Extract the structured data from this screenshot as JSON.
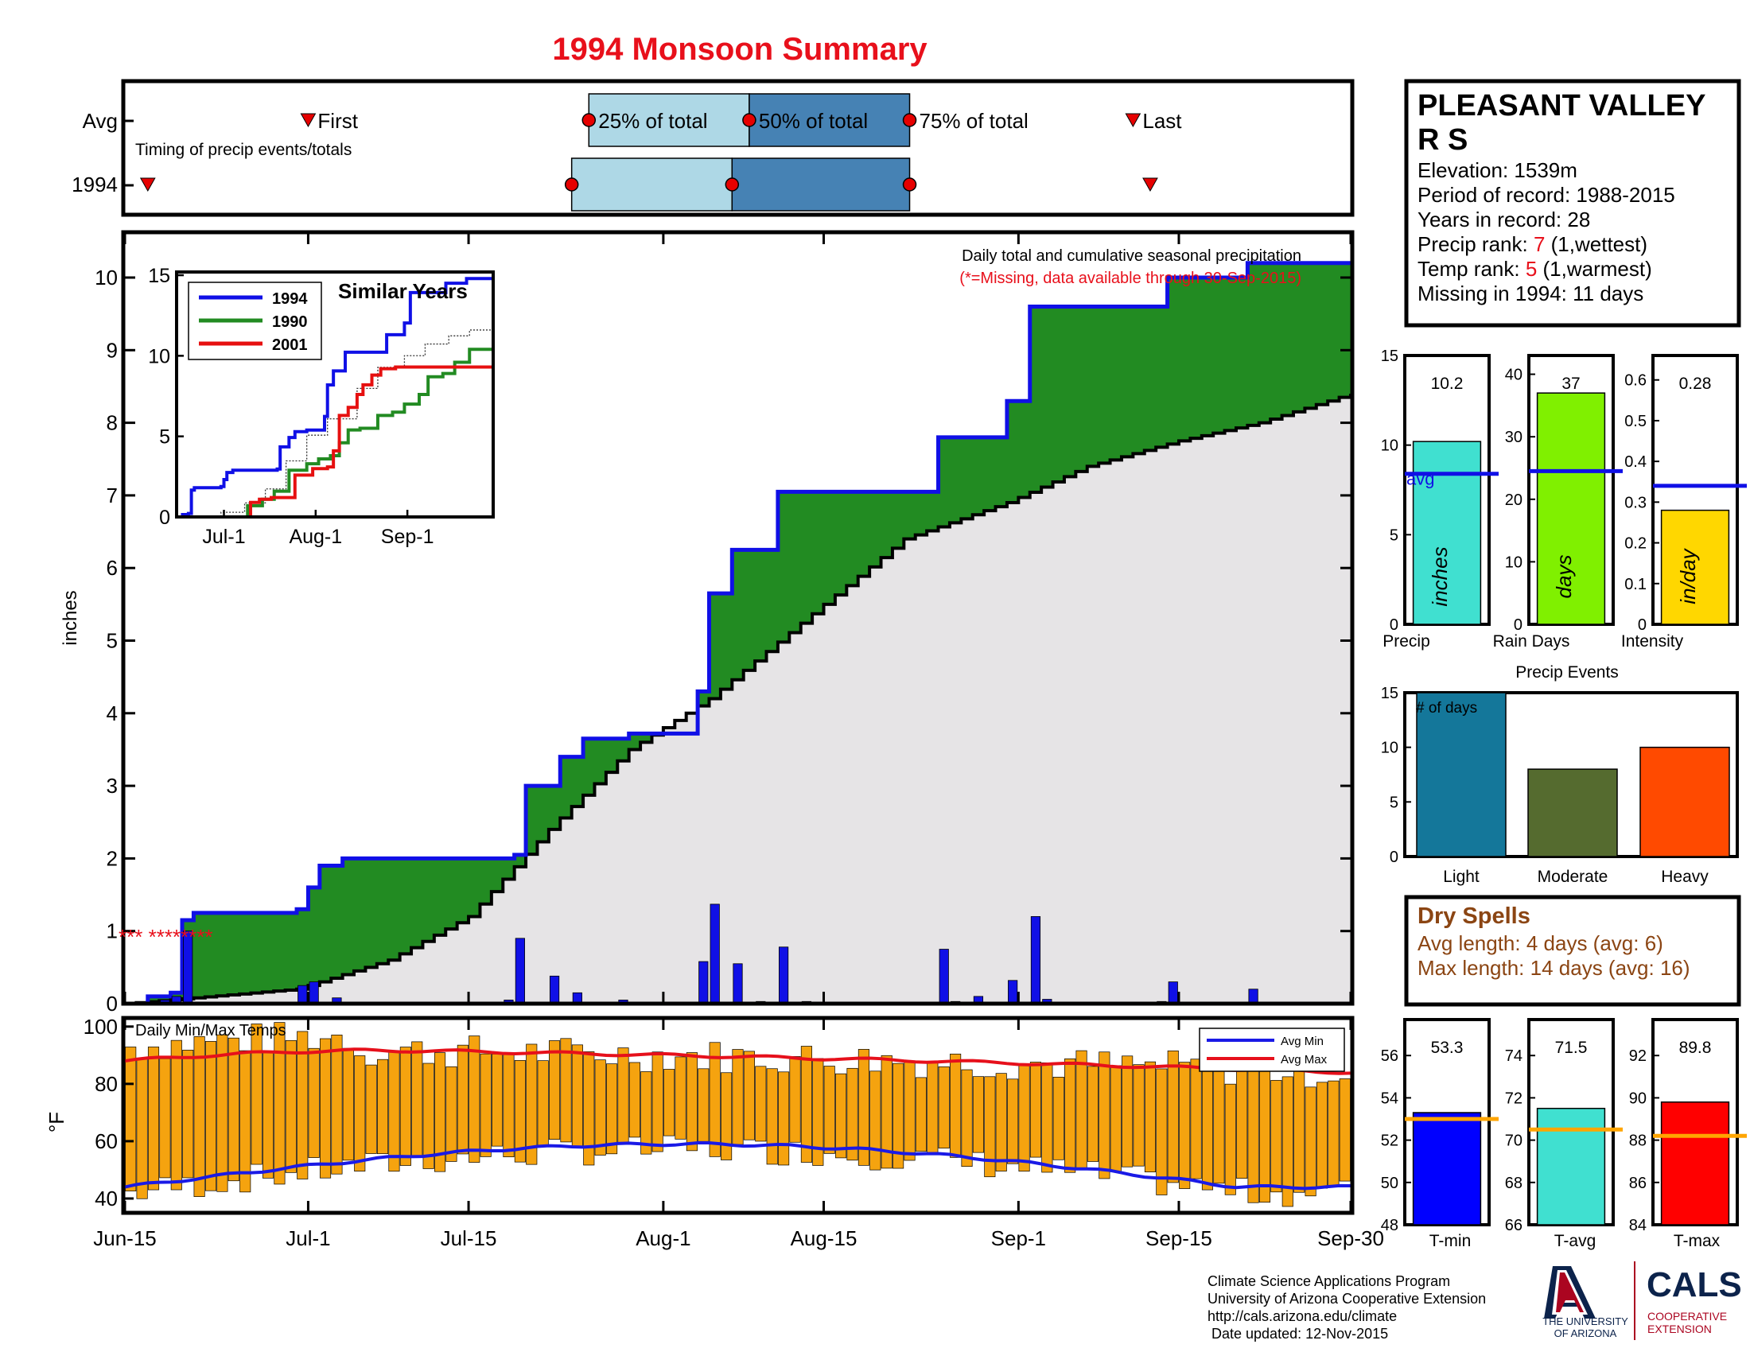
{
  "title": "1994 Monsoon Summary",
  "colors": {
    "title": "#e8101b",
    "obs_line": "#1010e6",
    "cum_fill": "#228b22",
    "avg_fill": "#e6e4e6",
    "bar_daily": "#1010e6",
    "temp_bar": "#f5a30f",
    "avg_min": "#1a1ae6",
    "avg_max": "#e6101b",
    "q_light": "#aed8e6",
    "q_dark": "#4682b4",
    "marker": "#e60000",
    "precip_bar": "#40e0d0",
    "rain_bar": "#80f000",
    "int_bar": "#ffd700",
    "ev_light": "#14779a",
    "ev_mod": "#556b2f",
    "ev_heavy": "#ff4a00",
    "tmin_bar": "#0000ff",
    "tavg_bar": "#40e0d0",
    "tmax_bar": "#ff0000",
    "temp_avg_line": "#ffa500",
    "dry": "#8b4513",
    "y1990": "#228b22",
    "y2001": "#e61010",
    "ua_navy": "#0c234b",
    "ua_red": "#ab0520"
  },
  "timing": {
    "row_labels": [
      "Avg",
      "1994"
    ],
    "caption": "Timing of precip events/totals",
    "avg_labels": [
      "First",
      "25% of total",
      "50% of total",
      "75% of total",
      "Last"
    ],
    "avg_days": {
      "first": 16,
      "q25": 40.5,
      "q50": 54.5,
      "q75": 68.5,
      "last": 88
    },
    "obs_days": {
      "first": 2,
      "q25": 39,
      "q50": 53,
      "q75": 68.5,
      "last": 89.5
    }
  },
  "station": {
    "name_line1": "PLEASANT VALLEY",
    "name_line2": "R S",
    "elevation": "Elevation: 1539m",
    "period": "Period of record: 1988-2015",
    "years": "Years in record: 28",
    "precip_rank_label": "Precip rank: ",
    "precip_rank": "7",
    "precip_rank_note": " (1,wettest)",
    "temp_rank_label": "Temp rank: ",
    "temp_rank": "5",
    "temp_rank_note": " (1,warmest)",
    "missing": "Missing in 1994: 11 days"
  },
  "main": {
    "legend1": "Daily total and cumulative seasonal precipitation",
    "legend2": "(*=Missing, data available through 30-Sep-2015)",
    "ylabel": "inches",
    "yticks": [
      "0",
      "1",
      "2",
      "3",
      "4",
      "5",
      "6",
      "7",
      "8",
      "9",
      "10"
    ],
    "missing_marks": "*** ********",
    "xticks": [
      "Jun-15",
      "Jul-1",
      "Jul-15",
      "Aug-1",
      "Aug-15",
      "Sep-1",
      "Sep-15",
      "Sep-30"
    ]
  },
  "inset": {
    "title": "Similar Years",
    "legend": [
      "1994",
      "1990",
      "2001"
    ],
    "yticks": [
      "0",
      "5",
      "10",
      "15"
    ],
    "xticks": [
      "Jul-1",
      "Aug-1",
      "Sep-1"
    ]
  },
  "temps": {
    "title": "Daily Min/Max Temps",
    "ylabel": "°F",
    "yticks": [
      "40",
      "60",
      "80",
      "100"
    ],
    "legend_min": "Avg Min",
    "legend_max": "Avg Max"
  },
  "summary_bars": {
    "precip": {
      "value": "10.2",
      "avg": 8.4,
      "label": "Precip",
      "unit": "inches",
      "ticks": [
        "0",
        "5",
        "10",
        "15"
      ],
      "avg_text": "avg"
    },
    "rain_days": {
      "value": "37",
      "avg": 24.5,
      "label": "Rain Days",
      "unit": "days",
      "ticks": [
        "0",
        "10",
        "20",
        "30",
        "40"
      ]
    },
    "intensity": {
      "value": "0.28",
      "avg": 0.34,
      "label": "Intensity",
      "unit": "in/day",
      "ticks": [
        "0",
        "0.1",
        "0.2",
        "0.3",
        "0.4",
        "0.5",
        "0.6"
      ]
    }
  },
  "events": {
    "title": "Precip Events",
    "yaxis_note": "# of days",
    "ticks": [
      "0",
      "5",
      "10",
      "15"
    ],
    "labels": [
      "Light",
      "Moderate",
      "Heavy"
    ],
    "values": [
      15,
      8,
      10
    ]
  },
  "dry_spells": {
    "title": "Dry Spells",
    "avg_length": "Avg length: 4 days (avg: 6)",
    "max_length": "Max length: 14 days (avg: 16)"
  },
  "temp_summary": {
    "tmin": {
      "value": "53.3",
      "avg": 53.0,
      "label": "T-min",
      "ticks": [
        "48",
        "50",
        "52",
        "54",
        "56"
      ]
    },
    "tavg": {
      "value": "71.5",
      "avg": 70.5,
      "label": "T-avg",
      "ticks": [
        "66",
        "68",
        "70",
        "72",
        "74"
      ]
    },
    "tmax": {
      "value": "89.8",
      "avg": 88.2,
      "label": "T-max",
      "ticks": [
        "84",
        "86",
        "88",
        "90",
        "92"
      ]
    }
  },
  "footer": {
    "line1": "Climate Science Applications Program",
    "line2": "University of Arizona Cooperative Extension",
    "line3": "http://cals.arizona.edu/climate",
    "line4": "Date updated: 12-Nov-2015",
    "ua_line1": "THE UNIVERSITY",
    "ua_line2": "OF ARIZONA",
    "cals": "CALS",
    "cals_sub1": "COOPERATIVE",
    "cals_sub2": "EXTENSION"
  },
  "chart_data": {
    "type": "area",
    "title": "1994 Monsoon Summary",
    "x_labels": [
      "Jun-15",
      "Jul-1",
      "Jul-15",
      "Aug-1",
      "Aug-15",
      "Sep-1",
      "Sep-15",
      "Sep-30"
    ],
    "ylabel": "inches",
    "ylim": [
      0,
      10.7
    ],
    "cumulative_1994": [
      {
        "date": "Jun-15",
        "in": 0.0
      },
      {
        "date": "Jun-17",
        "in": 0.1
      },
      {
        "date": "Jun-19",
        "in": 0.15
      },
      {
        "date": "Jun-20",
        "in": 1.15
      },
      {
        "date": "Jun-21",
        "in": 1.25
      },
      {
        "date": "Jun-30",
        "in": 1.3
      },
      {
        "date": "Jul-1",
        "in": 1.6
      },
      {
        "date": "Jul-2",
        "in": 1.9
      },
      {
        "date": "Jul-4",
        "in": 2.0
      },
      {
        "date": "Jul-19",
        "in": 2.05
      },
      {
        "date": "Jul-20",
        "in": 3.0
      },
      {
        "date": "Jul-23",
        "in": 3.4
      },
      {
        "date": "Jul-25",
        "in": 3.65
      },
      {
        "date": "Jul-29",
        "in": 3.72
      },
      {
        "date": "Aug-4",
        "in": 4.3
      },
      {
        "date": "Aug-5",
        "in": 5.65
      },
      {
        "date": "Aug-7",
        "in": 6.25
      },
      {
        "date": "Aug-11",
        "in": 7.05
      },
      {
        "date": "Aug-25",
        "in": 7.8
      },
      {
        "date": "Aug-31",
        "in": 8.3
      },
      {
        "date": "Sep-2",
        "in": 9.6
      },
      {
        "date": "Sep-14",
        "in": 10.0
      },
      {
        "date": "Sep-21",
        "in": 10.2
      },
      {
        "date": "Sep-30",
        "in": 10.2
      }
    ],
    "cumulative_avg": [
      {
        "date": "Jun-15",
        "in": 0.0
      },
      {
        "date": "Jun-30",
        "in": 0.2
      },
      {
        "date": "Jul-8",
        "in": 0.6
      },
      {
        "date": "Jul-15",
        "in": 1.2
      },
      {
        "date": "Jul-22",
        "in": 2.4
      },
      {
        "date": "Jul-29",
        "in": 3.5
      },
      {
        "date": "Aug-5",
        "in": 4.2
      },
      {
        "date": "Aug-15",
        "in": 5.5
      },
      {
        "date": "Aug-22",
        "in": 6.4
      },
      {
        "date": "Aug-31",
        "in": 6.9
      },
      {
        "date": "Sep-7",
        "in": 7.4
      },
      {
        "date": "Sep-15",
        "in": 7.75
      },
      {
        "date": "Sep-22",
        "in": 8.0
      },
      {
        "date": "Sep-30",
        "in": 8.4
      }
    ],
    "daily_precip": [
      {
        "date": "Jun-18",
        "in": 0.05
      },
      {
        "date": "Jun-19",
        "in": 0.1
      },
      {
        "date": "Jun-20",
        "in": 1.0
      },
      {
        "date": "Jun-30",
        "in": 0.25
      },
      {
        "date": "Jul-1",
        "in": 0.3
      },
      {
        "date": "Jul-3",
        "in": 0.08
      },
      {
        "date": "Jul-18",
        "in": 0.05
      },
      {
        "date": "Jul-19",
        "in": 0.9
      },
      {
        "date": "Jul-22",
        "in": 0.38
      },
      {
        "date": "Jul-24",
        "in": 0.15
      },
      {
        "date": "Jul-28",
        "in": 0.05
      },
      {
        "date": "Aug-4",
        "in": 0.58
      },
      {
        "date": "Aug-5",
        "in": 1.37
      },
      {
        "date": "Aug-7",
        "in": 0.55
      },
      {
        "date": "Aug-9",
        "in": 0.03
      },
      {
        "date": "Aug-11",
        "in": 0.78
      },
      {
        "date": "Aug-13",
        "in": 0.03
      },
      {
        "date": "Aug-25",
        "in": 0.75
      },
      {
        "date": "Aug-26",
        "in": 0.03
      },
      {
        "date": "Aug-28",
        "in": 0.1
      },
      {
        "date": "Aug-31",
        "in": 0.32
      },
      {
        "date": "Sep-2",
        "in": 1.2
      },
      {
        "date": "Sep-3",
        "in": 0.06
      },
      {
        "date": "Sep-13",
        "in": 0.03
      },
      {
        "date": "Sep-14",
        "in": 0.3
      },
      {
        "date": "Sep-21",
        "in": 0.2
      }
    ],
    "temps_F": {
      "ylim": [
        35,
        103
      ],
      "avg_max_start": 88,
      "avg_max_peak": 93,
      "avg_max_end": 84,
      "avg_min_start": 44,
      "avg_min_peak": 59,
      "avg_min_end": 43
    }
  }
}
